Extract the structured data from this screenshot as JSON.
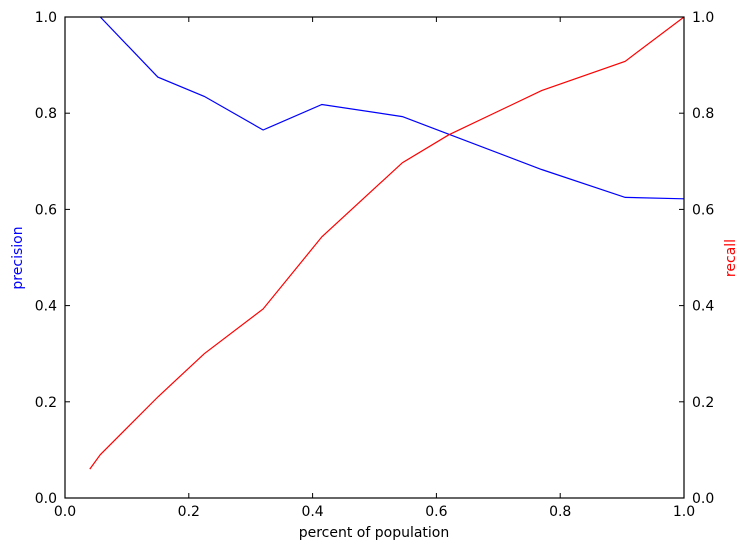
{
  "chart_data": {
    "type": "line",
    "xlabel": "percent of population",
    "ylabel_left": "precision",
    "ylabel_right": "recall",
    "xlim": [
      0.0,
      1.0
    ],
    "ylim_left": [
      0.0,
      1.0
    ],
    "ylim_right": [
      0.0,
      1.0
    ],
    "x_ticks": [
      "0.0",
      "0.2",
      "0.4",
      "0.6",
      "0.8",
      "1.0"
    ],
    "y_ticks_left": [
      "0.0",
      "0.2",
      "0.4",
      "0.6",
      "0.8",
      "1.0"
    ],
    "y_ticks_right": [
      "0.0",
      "0.2",
      "0.4",
      "0.6",
      "0.8",
      "1.0"
    ],
    "grid": false,
    "series": [
      {
        "axis": "left",
        "color": "#0000ff",
        "x": [
          0.057,
          0.15,
          0.225,
          0.32,
          0.415,
          0.545,
          0.77,
          0.905,
          1.0
        ],
        "y": [
          1.0,
          0.875,
          0.835,
          0.765,
          0.818,
          0.793,
          0.683,
          0.625,
          0.622
        ]
      },
      {
        "axis": "right",
        "color": "#ff0000",
        "x": [
          0.04,
          0.057,
          0.15,
          0.225,
          0.32,
          0.415,
          0.545,
          0.62,
          0.77,
          0.905,
          1.0
        ],
        "y": [
          0.06,
          0.09,
          0.21,
          0.3,
          0.393,
          0.543,
          0.697,
          0.755,
          0.847,
          0.908,
          1.0
        ]
      }
    ]
  }
}
